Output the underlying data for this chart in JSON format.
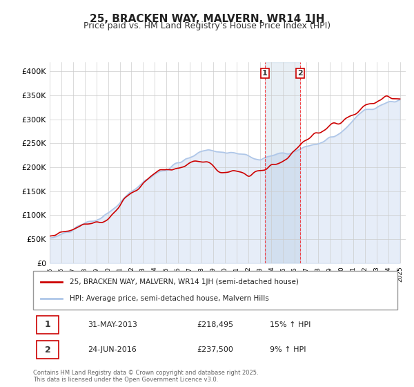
{
  "title": "25, BRACKEN WAY, MALVERN, WR14 1JH",
  "subtitle": "Price paid vs. HM Land Registry's House Price Index (HPI)",
  "title_fontsize": 11,
  "subtitle_fontsize": 9,
  "xlabel": "",
  "ylabel": "",
  "ylim": [
    0,
    420000
  ],
  "yticks": [
    0,
    50000,
    100000,
    150000,
    200000,
    250000,
    300000,
    350000,
    400000
  ],
  "ytick_labels": [
    "£0",
    "£50K",
    "£100K",
    "£150K",
    "£200K",
    "£250K",
    "£300K",
    "£350K",
    "£400K"
  ],
  "xlim_start": 1995.0,
  "xlim_end": 2025.5,
  "hpi_color": "#aec6e8",
  "price_color": "#cc0000",
  "transaction1_year": 2013.42,
  "transaction2_year": 2016.48,
  "transaction1_price": 218495,
  "transaction2_price": 237500,
  "transaction1_label": "1",
  "transaction2_label": "2",
  "transaction1_date": "31-MAY-2013",
  "transaction2_date": "24-JUN-2016",
  "transaction1_hpi_pct": "15% ↑ HPI",
  "transaction2_hpi_pct": "9% ↑ HPI",
  "legend_line1": "25, BRACKEN WAY, MALVERN, WR14 1JH (semi-detached house)",
  "legend_line2": "HPI: Average price, semi-detached house, Malvern Hills",
  "footer": "Contains HM Land Registry data © Crown copyright and database right 2025.\nThis data is licensed under the Open Government Licence v3.0.",
  "background_color": "#ffffff",
  "grid_color": "#cccccc"
}
